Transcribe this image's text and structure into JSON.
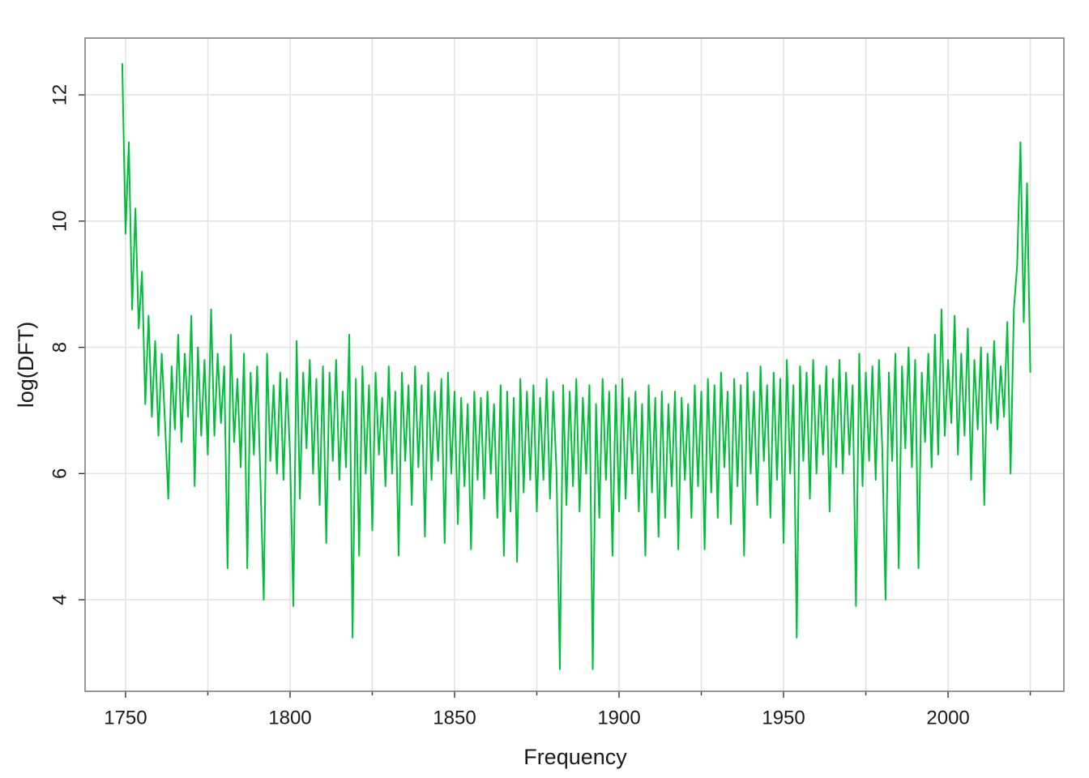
{
  "chart_data": {
    "type": "line",
    "x_label": "Frequency",
    "y_label": "log(DFT)",
    "xlim": [
      1737.7,
      2035.2
    ],
    "ylim": [
      2.55,
      12.9
    ],
    "xticks": [
      1750,
      1800,
      1850,
      1900,
      1950,
      2000
    ],
    "x_minor_ticks": [
      1775,
      1825,
      1875,
      1925,
      1975,
      2025
    ],
    "yticks": [
      4,
      6,
      8,
      10,
      12
    ],
    "grid": true,
    "series": [
      {
        "color": "#00BE3A",
        "x": [
          1749,
          1750,
          1751,
          1752,
          1753,
          1754,
          1755,
          1756,
          1757,
          1758,
          1759,
          1760,
          1761,
          1762,
          1763,
          1764,
          1765,
          1766,
          1767,
          1768,
          1769,
          1770,
          1771,
          1772,
          1773,
          1774,
          1775,
          1776,
          1777,
          1778,
          1779,
          1780,
          1781,
          1782,
          1783,
          1784,
          1785,
          1786,
          1787,
          1788,
          1789,
          1790,
          1791,
          1792,
          1793,
          1794,
          1795,
          1796,
          1797,
          1798,
          1799,
          1800,
          1801,
          1802,
          1803,
          1804,
          1805,
          1806,
          1807,
          1808,
          1809,
          1810,
          1811,
          1812,
          1813,
          1814,
          1815,
          1816,
          1817,
          1818,
          1819,
          1820,
          1821,
          1822,
          1823,
          1824,
          1825,
          1826,
          1827,
          1828,
          1829,
          1830,
          1831,
          1832,
          1833,
          1834,
          1835,
          1836,
          1837,
          1838,
          1839,
          1840,
          1841,
          1842,
          1843,
          1844,
          1845,
          1846,
          1847,
          1848,
          1849,
          1850,
          1851,
          1852,
          1853,
          1854,
          1855,
          1856,
          1857,
          1858,
          1859,
          1860,
          1861,
          1862,
          1863,
          1864,
          1865,
          1866,
          1867,
          1868,
          1869,
          1870,
          1871,
          1872,
          1873,
          1874,
          1875,
          1876,
          1877,
          1878,
          1879,
          1880,
          1881,
          1882,
          1883,
          1884,
          1885,
          1886,
          1887,
          1888,
          1889,
          1890,
          1891,
          1892,
          1893,
          1894,
          1895,
          1896,
          1897,
          1898,
          1899,
          1900,
          1901,
          1902,
          1903,
          1904,
          1905,
          1906,
          1907,
          1908,
          1909,
          1910,
          1911,
          1912,
          1913,
          1914,
          1915,
          1916,
          1917,
          1918,
          1919,
          1920,
          1921,
          1922,
          1923,
          1924,
          1925,
          1926,
          1927,
          1928,
          1929,
          1930,
          1931,
          1932,
          1933,
          1934,
          1935,
          1936,
          1937,
          1938,
          1939,
          1940,
          1941,
          1942,
          1943,
          1944,
          1945,
          1946,
          1947,
          1948,
          1949,
          1950,
          1951,
          1952,
          1953,
          1954,
          1955,
          1956,
          1957,
          1958,
          1959,
          1960,
          1961,
          1962,
          1963,
          1964,
          1965,
          1966,
          1967,
          1968,
          1969,
          1970,
          1971,
          1972,
          1973,
          1974,
          1975,
          1976,
          1977,
          1978,
          1979,
          1980,
          1981,
          1982,
          1983,
          1984,
          1985,
          1986,
          1987,
          1988,
          1989,
          1990,
          1991,
          1992,
          1993,
          1994,
          1995,
          1996,
          1997,
          1998,
          1999,
          2000,
          2001,
          2002,
          2003,
          2004,
          2005,
          2006,
          2007,
          2008,
          2009,
          2010,
          2011,
          2012,
          2013,
          2014,
          2015,
          2016,
          2017,
          2018,
          2019,
          2020,
          2021,
          2022,
          2023,
          2024,
          2025
        ],
        "values": [
          12.5,
          9.8,
          11.25,
          8.6,
          10.2,
          8.3,
          9.2,
          7.1,
          8.5,
          6.9,
          8.1,
          6.6,
          7.9,
          6.8,
          5.6,
          7.7,
          6.7,
          8.2,
          6.5,
          7.9,
          6.9,
          8.5,
          5.8,
          8.0,
          6.6,
          7.8,
          6.3,
          8.6,
          6.6,
          7.9,
          6.8,
          7.7,
          4.5,
          8.2,
          6.5,
          7.5,
          6.1,
          7.9,
          4.5,
          7.6,
          6.3,
          7.7,
          5.9,
          4.0,
          7.9,
          6.2,
          7.4,
          6.0,
          7.6,
          5.9,
          7.5,
          6.3,
          3.9,
          8.1,
          5.6,
          7.6,
          6.4,
          7.8,
          6.0,
          7.5,
          5.5,
          7.7,
          4.9,
          7.6,
          6.2,
          7.8,
          5.9,
          7.3,
          6.1,
          8.2,
          3.4,
          7.5,
          4.7,
          7.7,
          6.0,
          7.4,
          5.1,
          7.6,
          6.3,
          7.2,
          5.8,
          7.7,
          6.0,
          7.3,
          4.7,
          7.6,
          6.2,
          7.4,
          5.5,
          7.7,
          6.1,
          7.4,
          5.0,
          7.6,
          5.9,
          7.3,
          6.2,
          7.5,
          4.9,
          7.6,
          6.0,
          7.3,
          5.2,
          7.2,
          5.8,
          7.1,
          4.8,
          7.3,
          5.9,
          7.2,
          5.6,
          7.3,
          6.0,
          7.1,
          5.3,
          7.4,
          4.7,
          7.3,
          5.4,
          7.2,
          4.6,
          7.5,
          5.7,
          7.3,
          5.9,
          7.4,
          5.4,
          7.2,
          5.9,
          7.5,
          5.6,
          7.3,
          6.0,
          2.9,
          7.4,
          5.5,
          7.3,
          5.8,
          7.5,
          5.4,
          7.2,
          6.0,
          7.4,
          2.9,
          7.1,
          5.3,
          7.5,
          5.9,
          7.3,
          4.7,
          7.4,
          5.4,
          7.5,
          5.6,
          7.2,
          6.0,
          7.3,
          5.4,
          7.1,
          4.7,
          7.4,
          5.7,
          7.2,
          5.0,
          7.3,
          5.3,
          7.1,
          5.8,
          7.3,
          4.8,
          7.2,
          5.9,
          7.1,
          5.3,
          7.4,
          5.8,
          7.3,
          4.8,
          7.5,
          5.7,
          7.4,
          5.3,
          7.6,
          6.1,
          7.3,
          5.2,
          7.5,
          5.8,
          7.4,
          4.7,
          7.6,
          6.0,
          7.3,
          5.5,
          7.7,
          6.2,
          7.4,
          5.3,
          7.6,
          5.9,
          7.5,
          4.9,
          7.8,
          6.0,
          7.4,
          3.4,
          7.7,
          6.2,
          7.6,
          5.6,
          7.8,
          6.0,
          7.4,
          6.3,
          7.7,
          5.4,
          7.5,
          6.1,
          7.8,
          6.0,
          7.6,
          6.3,
          7.4,
          3.9,
          7.9,
          5.8,
          7.6,
          6.2,
          7.7,
          5.9,
          7.8,
          6.4,
          4.0,
          7.6,
          6.2,
          7.9,
          4.5,
          7.7,
          6.4,
          8.0,
          6.1,
          7.8,
          4.5,
          7.6,
          6.5,
          7.9,
          6.1,
          8.2,
          6.3,
          8.6,
          6.6,
          7.8,
          6.8,
          8.5,
          6.3,
          7.9,
          6.6,
          8.3,
          5.9,
          7.8,
          6.7,
          8.0,
          5.5,
          7.9,
          6.8,
          8.1,
          6.7,
          7.7,
          6.9,
          8.4,
          6.0,
          8.6,
          9.3,
          11.25,
          8.4,
          10.6,
          7.6
        ]
      }
    ]
  }
}
